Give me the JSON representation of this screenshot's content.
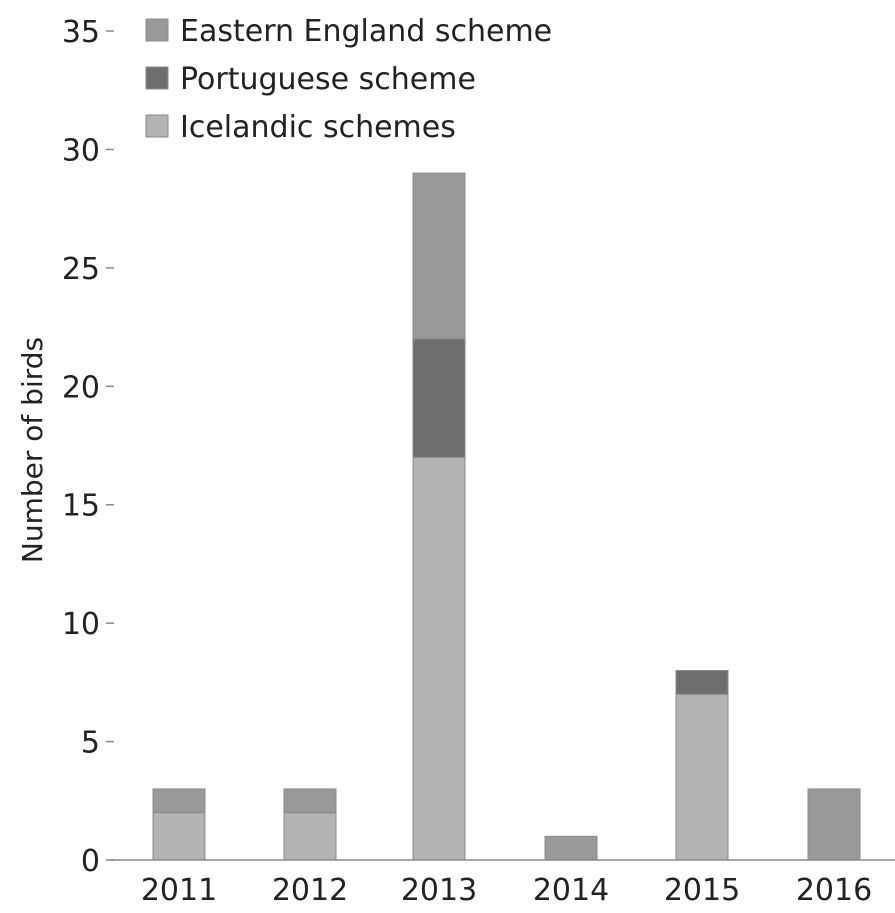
{
  "chart_data": {
    "type": "bar",
    "stacked": true,
    "title": "",
    "xlabel": "",
    "ylabel": "Number of birds",
    "ylim": [
      0,
      35
    ],
    "yticks": [
      0,
      5,
      10,
      15,
      20,
      25,
      30,
      35
    ],
    "categories": [
      "2011",
      "2012",
      "2013",
      "2014",
      "2015",
      "2016"
    ],
    "grid": false,
    "legend_position": "top-left",
    "series": [
      {
        "name": "Icelandic schemes",
        "color": "#b3b3b3",
        "values": [
          2,
          2,
          17,
          0,
          7,
          0
        ]
      },
      {
        "name": "Portuguese scheme",
        "color": "#6e6e6e",
        "values": [
          0,
          0,
          5,
          0,
          1,
          0
        ]
      },
      {
        "name": "Eastern England scheme",
        "color": "#999999",
        "values": [
          1,
          1,
          7,
          1,
          0,
          3
        ]
      }
    ],
    "legend_order": [
      "Eastern England scheme",
      "Portuguese scheme",
      "Icelandic schemes"
    ]
  }
}
